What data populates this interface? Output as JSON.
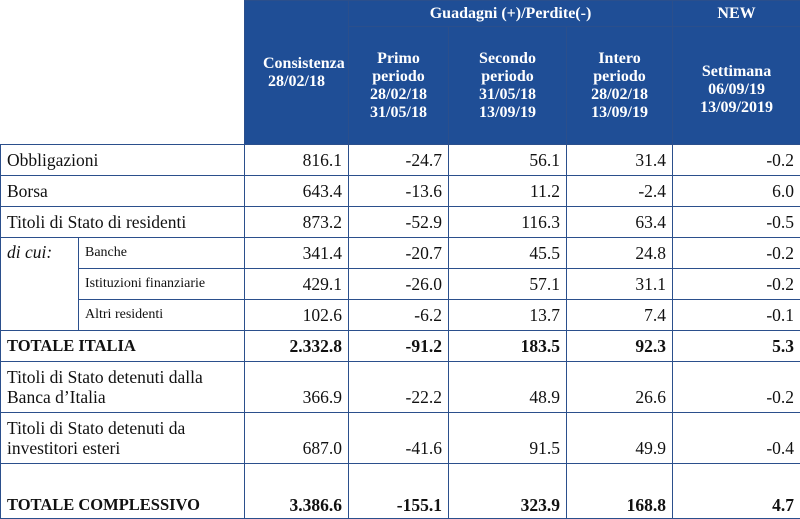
{
  "header": {
    "consistenza": "Consistenza 28/02/18",
    "group_label": "Guadagni (+)/Perdite(-)",
    "new_label": "NEW",
    "periods": [
      "Primo periodo 28/02/18 31/05/18",
      "Secondo periodo 31/05/18 13/09/19",
      "Intero periodo 28/02/18 13/09/19"
    ],
    "settimana": "Settimana 06/09/19 13/09/2019"
  },
  "sub_prefix": "di cui:",
  "rows": [
    {
      "label": "Obbligazioni",
      "values": [
        "816.1",
        "-24.7",
        "56.1",
        "31.4",
        "-0.2"
      ]
    },
    {
      "label": "Borsa",
      "values": [
        "643.4",
        "-13.6",
        "11.2",
        "-2.4",
        "6.0"
      ]
    },
    {
      "label": "Titoli di Stato di residenti",
      "values": [
        "873.2",
        "-52.9",
        "116.3",
        "63.4",
        "-0.5"
      ]
    },
    {
      "label": "Banche",
      "values": [
        "341.4",
        "-20.7",
        "45.5",
        "24.8",
        "-0.2"
      ]
    },
    {
      "label": "Istituzioni finanziarie",
      "values": [
        "429.1",
        "-26.0",
        "57.1",
        "31.1",
        "-0.2"
      ]
    },
    {
      "label": "Altri residenti",
      "values": [
        "102.6",
        "-6.2",
        "13.7",
        "7.4",
        "-0.1"
      ]
    },
    {
      "label": "TOTALE ITALIA",
      "values": [
        "2.332.8",
        "-91.2",
        "183.5",
        "92.3",
        "5.3"
      ]
    },
    {
      "label": "Titoli di Stato detenuti dalla Banca d’Italia",
      "values": [
        "366.9",
        "-22.2",
        "48.9",
        "26.6",
        "-0.2"
      ]
    },
    {
      "label": "Titoli di Stato detenuti da investitori esteri",
      "values": [
        "687.0",
        "-41.6",
        "91.5",
        "49.9",
        "-0.4"
      ]
    },
    {
      "label": "TOTALE COMPLESSIVO",
      "values": [
        "3.386.6",
        "-155.1",
        "323.9",
        "168.8",
        "4.7"
      ]
    }
  ]
}
